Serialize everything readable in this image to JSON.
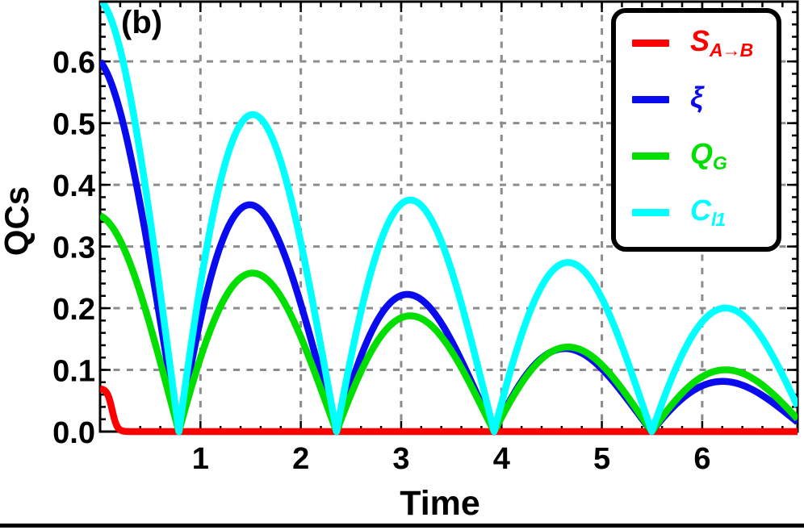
{
  "figure": {
    "panel_label": "(b)",
    "xlabel": "Time",
    "ylabel": "QCs",
    "background_color": "#FFFFFF",
    "frame_color": "#000000"
  },
  "legend": {
    "position": "top-right",
    "border_color": "#000000",
    "items": [
      {
        "id": "S_A→B",
        "main": "S",
        "sub": "A→B",
        "color": "#FF0000"
      },
      {
        "id": "ξ",
        "main": "ξ",
        "sub": "",
        "color": "#0A0AEE"
      },
      {
        "id": "Q_G",
        "main": "Q",
        "sub": "G",
        "color": "#00DF00"
      },
      {
        "id": "C_l1",
        "main": "C",
        "sub": "l1",
        "color": "#00FFFF"
      }
    ]
  },
  "chart_data": {
    "type": "line",
    "title": "",
    "panel": "(b)",
    "xlabel": "Time",
    "ylabel": "QCs",
    "xlim": [
      0,
      6.95
    ],
    "ylim": [
      0,
      0.697
    ],
    "x_ticks": [
      1,
      2,
      3,
      4,
      5,
      6
    ],
    "x_tick_labels": [
      "1",
      "2",
      "3",
      "4",
      "5",
      "6"
    ],
    "x_minor_tick_step": 0.2,
    "y_ticks": [
      0,
      0.1,
      0.2,
      0.3,
      0.4,
      0.5,
      0.6
    ],
    "y_tick_labels": [
      "0.0",
      "0.1",
      "0.2",
      "0.3",
      "0.4",
      "0.5",
      "0.6"
    ],
    "y_minor_tick_step": 0.02,
    "grid": {
      "shown": true,
      "style": "dashed",
      "color": "#8C8C8C",
      "at": "major ticks"
    },
    "legend_position": "top-right",
    "series": [
      {
        "name": "S_A→B",
        "color": "#FF0000",
        "model": "plateau_sigmoid",
        "amplitude": 0.07,
        "midpoint": 0.12,
        "width": 0.025,
        "description": "starts at 0.07 at t=0, drops sharply to 0 near t≈0.2, remains 0 to t=6.95",
        "keypoints": {
          "t": [
            0,
            0.1,
            0.15,
            0.2,
            0.3,
            7
          ],
          "values": [
            0.07,
            0.048,
            0.016,
            0.003,
            0,
            0
          ]
        }
      },
      {
        "name": "ξ",
        "color": "#0A0AEE",
        "model": "damped_abs_cos",
        "initial": 0.6,
        "decay_rate": 0.32,
        "frequency": 2,
        "peaks": {
          "t": [
            0,
            1.571,
            3.142,
            4.712,
            6.283
          ],
          "values": [
            0.6,
            0.365,
            0.222,
            0.133,
            0.08
          ]
        },
        "zeros_t": [
          0.785,
          2.356,
          3.927,
          5.498
        ]
      },
      {
        "name": "Q_G",
        "color": "#00DF00",
        "model": "damped_abs_cos",
        "initial": 0.35,
        "decay_rate": 0.2,
        "frequency": 2,
        "peaks": {
          "t": [
            0,
            1.571,
            3.142,
            4.712,
            6.283
          ],
          "values": [
            0.35,
            0.256,
            0.187,
            0.137,
            0.1
          ]
        },
        "zeros_t": [
          0.785,
          2.356,
          3.927,
          5.498
        ]
      },
      {
        "name": "C_l1",
        "color": "#00FFFF",
        "model": "damped_abs_cos",
        "initial": 0.7,
        "decay_rate": 0.2,
        "frequency": 2,
        "peaks": {
          "t": [
            0,
            1.571,
            3.142,
            4.712,
            6.283
          ],
          "values": [
            0.7,
            0.511,
            0.373,
            0.273,
            0.199
          ]
        },
        "zeros_t": [
          0.785,
          2.356,
          3.927,
          5.498
        ]
      }
    ]
  }
}
